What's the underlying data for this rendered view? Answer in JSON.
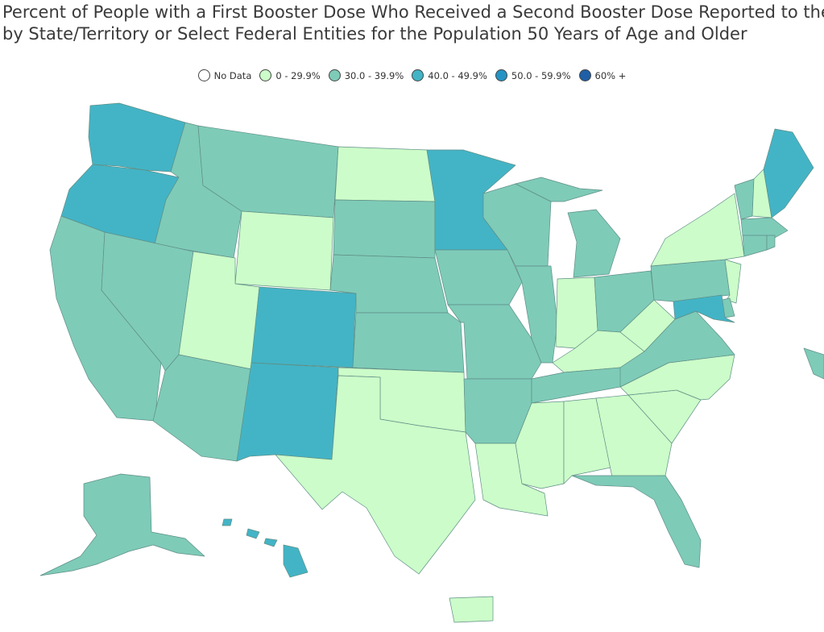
{
  "title_line1": "Percent of People with a First Booster Dose Who Received a Second Booster Dose Reported to the",
  "title_line2": "by State/Territory or Select Federal Entities for the Population 50 Years of Age and Older",
  "legend": [
    {
      "label": "No Data",
      "color": "#ffffff"
    },
    {
      "label": "0 - 29.9%",
      "color": "#ccfcc9"
    },
    {
      "label": "30.0 - 39.9%",
      "color": "#7ecbb8"
    },
    {
      "label": "40.0 - 49.9%",
      "color": "#43b4c6"
    },
    {
      "label": "50.0 - 59.9%",
      "color": "#2493c4"
    },
    {
      "label": "60% +",
      "color": "#1f5fa6"
    }
  ],
  "categories": {
    "Washington": "40.0 - 49.9%",
    "Oregon": "40.0 - 49.9%",
    "California": "30.0 - 39.9%",
    "Idaho": "30.0 - 39.9%",
    "Nevada": "30.0 - 39.9%",
    "Montana": "30.0 - 39.9%",
    "Wyoming": "0 - 29.9%",
    "Utah": "0 - 29.9%",
    "Arizona": "30.0 - 39.9%",
    "Colorado": "40.0 - 49.9%",
    "New Mexico": "40.0 - 49.9%",
    "North Dakota": "0 - 29.9%",
    "South Dakota": "30.0 - 39.9%",
    "Nebraska": "30.0 - 39.9%",
    "Kansas": "30.0 - 39.9%",
    "Oklahoma": "0 - 29.9%",
    "Texas": "0 - 29.9%",
    "Minnesota": "40.0 - 49.9%",
    "Iowa": "30.0 - 39.9%",
    "Missouri": "30.0 - 39.9%",
    "Arkansas": "30.0 - 39.9%",
    "Louisiana": "0 - 29.9%",
    "Wisconsin": "30.0 - 39.9%",
    "Illinois": "30.0 - 39.9%",
    "Michigan": "30.0 - 39.9%",
    "Indiana": "0 - 29.9%",
    "Ohio": "30.0 - 39.9%",
    "Kentucky": "0 - 29.9%",
    "Tennessee": "30.0 - 39.9%",
    "Mississippi": "0 - 29.9%",
    "Alabama": "0 - 29.9%",
    "Georgia": "0 - 29.9%",
    "Florida": "30.0 - 39.9%",
    "South Carolina": "0 - 29.9%",
    "North Carolina": "0 - 29.9%",
    "Virginia": "30.0 - 39.9%",
    "West Virginia": "0 - 29.9%",
    "Pennsylvania": "30.0 - 39.9%",
    "New York": "0 - 29.9%",
    "New Jersey": "0 - 29.9%",
    "Delaware": "30.0 - 39.9%",
    "Maryland": "40.0 - 49.9%",
    "Vermont": "30.0 - 39.9%",
    "New Hampshire": "0 - 29.9%",
    "Maine": "40.0 - 49.9%",
    "Massachusetts": "30.0 - 39.9%",
    "Connecticut": "30.0 - 39.9%",
    "Rhode Island": "30.0 - 39.9%",
    "Alaska": "30.0 - 39.9%",
    "Hawaii": "40.0 - 49.9%",
    "Puerto Rico": "0 - 29.9%",
    "US Virgin Islands": "30.0 - 39.9%"
  }
}
